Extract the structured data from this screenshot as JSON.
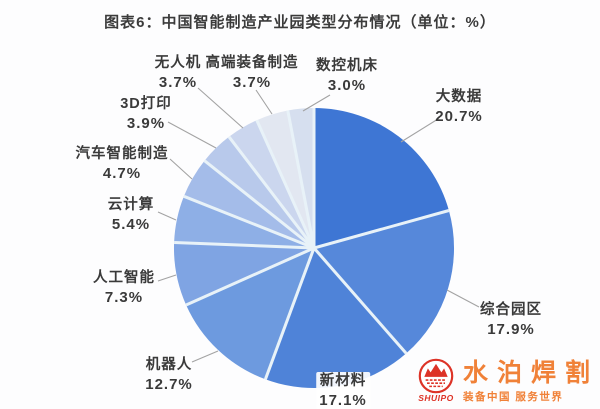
{
  "chart_data": {
    "type": "pie",
    "title": "图表6：中国智能制造产业园类型分布情况（单位：%）",
    "unit": "%",
    "start_angle": "12-o-clock",
    "direction": "clockwise",
    "legend_position": "none",
    "slices": [
      {
        "label": "大数据",
        "value": 20.7,
        "text": "20.7%",
        "color": "#3E76D4"
      },
      {
        "label": "综合园区",
        "value": 17.9,
        "text": "17.9%",
        "color": "#5688DA"
      },
      {
        "label": "新材料",
        "value": 17.1,
        "text": "17.1%",
        "color": "#4F83D8"
      },
      {
        "label": "机器人",
        "value": 12.7,
        "text": "12.7%",
        "color": "#6D9ADF"
      },
      {
        "label": "人工智能",
        "value": 7.3,
        "text": "7.3%",
        "color": "#7FA4E3"
      },
      {
        "label": "云计算",
        "value": 5.4,
        "text": "5.4%",
        "color": "#8EAFE6"
      },
      {
        "label": "汽车智能制造",
        "value": 4.7,
        "text": "4.7%",
        "color": "#A4BCE9"
      },
      {
        "label": "3D打印",
        "value": 3.9,
        "text": "3.9%",
        "color": "#B8C9EB"
      },
      {
        "label": "无人机",
        "value": 3.7,
        "text": "3.7%",
        "color": "#CBD6EE"
      },
      {
        "label": "高端装备制造",
        "value": 3.7,
        "text": "3.7%",
        "color": "#E2E7F1"
      },
      {
        "label": "数控机床",
        "value": 3.0,
        "text": "3.0%",
        "color": "#D6DFEF"
      }
    ]
  },
  "watermark": {
    "brand": "水泊焊割",
    "brand_sub": "SHUIPO",
    "tagline": "装备中国 服务世界",
    "brand_color": "#F08138",
    "emblem_color": "#DD3327"
  },
  "colors": {
    "label_text": "#3A3A3A",
    "leader_line": "#A3A3A3",
    "slice_separator": "#E8F2F8"
  }
}
